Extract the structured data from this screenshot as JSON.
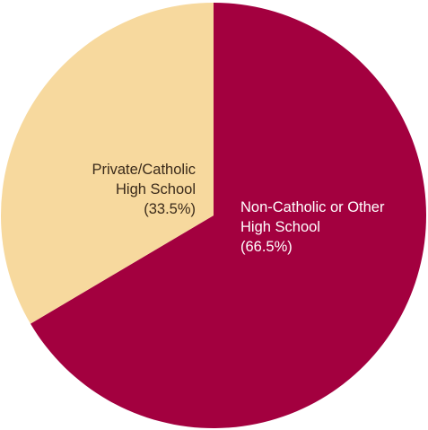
{
  "chart_data": {
    "type": "pie",
    "title": "",
    "slices": [
      {
        "lines": [
          "Non-Catholic or Other",
          "High School",
          "(66.5%)"
        ],
        "value": 66.5,
        "color": "#a3003f",
        "text_color": "#ffffff"
      },
      {
        "lines": [
          "Private/Catholic",
          "High School",
          "(33.5%)"
        ],
        "value": 33.5,
        "color": "#f7d99e",
        "text_color": "#3a2a1a"
      }
    ]
  }
}
